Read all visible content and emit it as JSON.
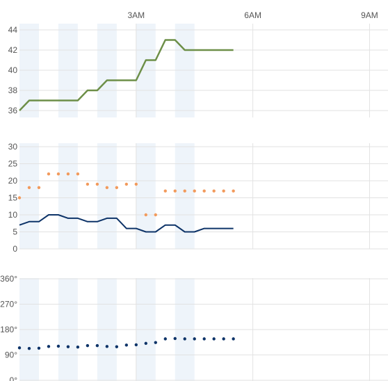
{
  "x_axis": {
    "ticks": [
      {
        "label": "3AM",
        "x": 6
      },
      {
        "label": "6AM",
        "x": 12
      },
      {
        "label": "9AM",
        "x": 18
      }
    ],
    "range": [
      0,
      18.95
    ],
    "shaded_bands": [
      [
        0,
        1
      ],
      [
        2,
        3
      ],
      [
        4,
        5
      ],
      [
        6,
        7
      ],
      [
        8,
        9
      ]
    ]
  },
  "colors": {
    "band": "#eef4fa",
    "grid": "#e2e2e2",
    "temperature": "#6d8f48",
    "wind_speed": "#0d3368",
    "wind_gust": "#f29a5c",
    "wind_direction": "#0d3368"
  },
  "chart_data": [
    {
      "type": "line",
      "x": [
        0,
        0.5,
        1,
        1.5,
        2,
        2.5,
        3,
        3.5,
        4,
        4.5,
        5,
        5.5,
        6,
        6.5,
        7,
        7.5,
        8,
        8.5,
        9,
        9.5,
        10,
        10.5,
        11
      ],
      "series": [
        {
          "values": [
            36,
            37,
            37,
            37,
            37,
            37,
            37,
            38,
            38,
            39,
            39,
            39,
            39,
            41,
            41,
            43,
            43,
            42,
            42,
            42,
            42,
            42,
            42
          ]
        }
      ],
      "ylim": [
        35.3,
        44.7
      ],
      "y_ticks": [
        "36",
        "38",
        "40",
        "42",
        "44"
      ],
      "grid": true
    },
    {
      "type": "line",
      "x": [
        0,
        0.5,
        1,
        1.5,
        2,
        2.5,
        3,
        3.5,
        4,
        4.5,
        5,
        5.5,
        6,
        6.5,
        7,
        7.5,
        8,
        8.5,
        9,
        9.5,
        10,
        10.5,
        11
      ],
      "series": [
        {
          "values": [
            7,
            8,
            8,
            10,
            10,
            9,
            9,
            8,
            8,
            9,
            9,
            6,
            6,
            5,
            5,
            7,
            7,
            5,
            5,
            6,
            6,
            6,
            6
          ]
        },
        {
          "values": [
            15,
            18,
            18,
            22,
            22,
            22,
            22,
            19,
            19,
            18,
            18,
            19,
            19,
            10,
            10,
            17,
            17,
            17,
            17,
            17,
            17,
            17,
            17
          ]
        }
      ],
      "ylim": [
        0,
        30
      ],
      "y_ticks": [
        "0",
        "5",
        "10",
        "15",
        "20",
        "25",
        "30"
      ],
      "grid": true
    },
    {
      "type": "scatter",
      "x": [
        0,
        0.5,
        1,
        1.5,
        2,
        2.5,
        3,
        3.5,
        4,
        4.5,
        5,
        5.5,
        6,
        6.5,
        7,
        7.5,
        8,
        8.5,
        9,
        9.5,
        10,
        10.5,
        11
      ],
      "series": [
        {
          "values": [
            115,
            113,
            114,
            120,
            121,
            119,
            118,
            123,
            123,
            120,
            119,
            125,
            126,
            131,
            134,
            147,
            148,
            147,
            147,
            147,
            147,
            147,
            147
          ]
        }
      ],
      "ylim": [
        0,
        360
      ],
      "y_ticks": [
        "0°",
        "90°",
        "180°",
        "270°",
        "360°"
      ],
      "grid": true
    }
  ]
}
